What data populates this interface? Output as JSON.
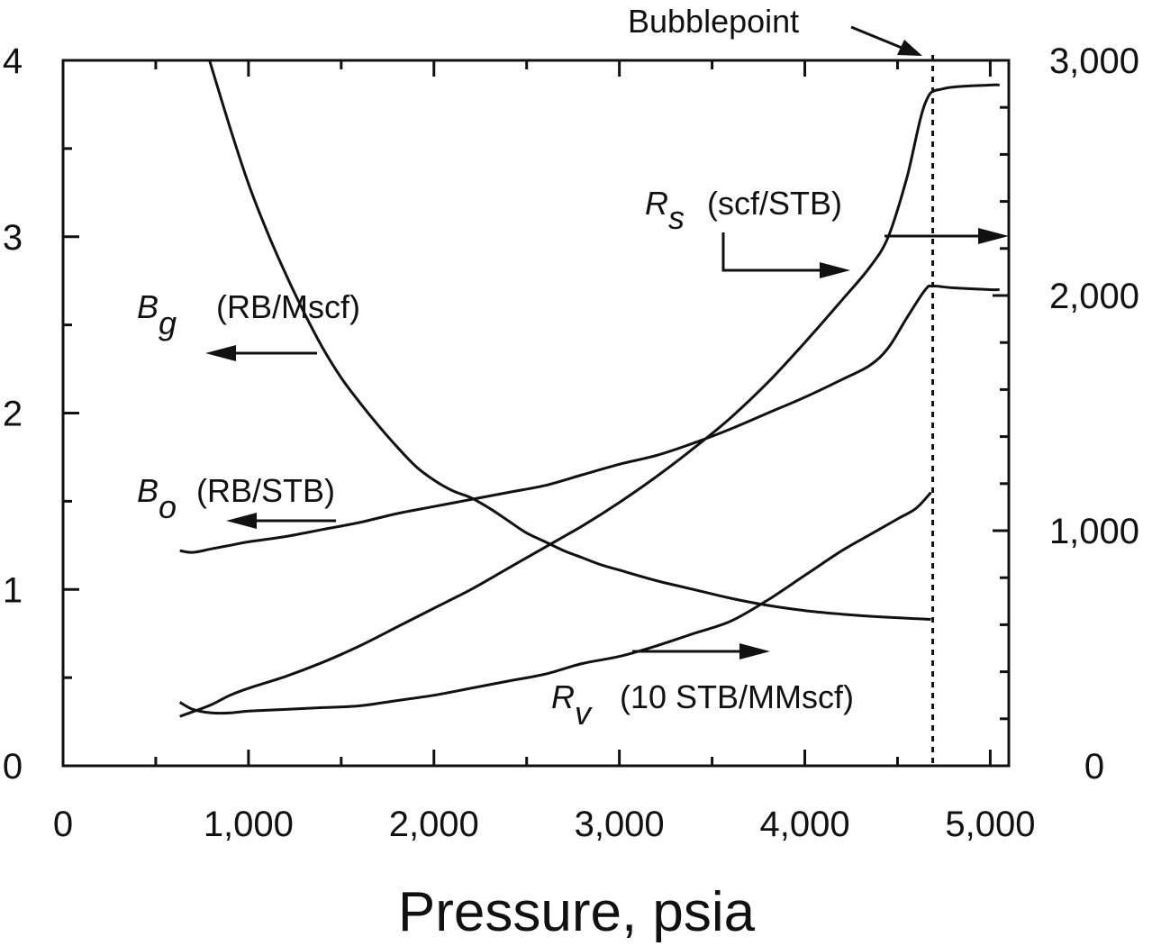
{
  "chart_data": {
    "type": "line",
    "xlabel": "Pressure, psia",
    "xlim": [
      0,
      5100
    ],
    "ylim_left": [
      0,
      4
    ],
    "ylim_right": [
      0,
      3000
    ],
    "x_ticks": [
      {
        "value": 0,
        "label": "0"
      },
      {
        "value": 1000,
        "label": "1,000"
      },
      {
        "value": 2000,
        "label": "2,000"
      },
      {
        "value": 3000,
        "label": "3,000"
      },
      {
        "value": 4000,
        "label": "4,000"
      },
      {
        "value": 5000,
        "label": "5,000"
      }
    ],
    "y_left_ticks": [
      {
        "value": 0,
        "label": "0"
      },
      {
        "value": 1,
        "label": "1"
      },
      {
        "value": 2,
        "label": "2"
      },
      {
        "value": 3,
        "label": "3"
      },
      {
        "value": 4,
        "label": "4"
      }
    ],
    "y_right_ticks": [
      {
        "value": 0,
        "label": "0"
      },
      {
        "value": 1000,
        "label": "1,000"
      },
      {
        "value": 2000,
        "label": "2,000"
      },
      {
        "value": 3000,
        "label": "3,000"
      }
    ],
    "bubblepoint": {
      "x": 4690,
      "label": "Bubblepoint"
    },
    "series": [
      {
        "name": "Bg",
        "axis": "left",
        "points": [
          [
            790,
            4.0
          ],
          [
            900,
            3.62
          ],
          [
            1000,
            3.3
          ],
          [
            1100,
            3.03
          ],
          [
            1200,
            2.79
          ],
          [
            1300,
            2.57
          ],
          [
            1400,
            2.37
          ],
          [
            1500,
            2.2
          ],
          [
            1600,
            2.06
          ],
          [
            1700,
            1.93
          ],
          [
            1800,
            1.81
          ],
          [
            1900,
            1.7
          ],
          [
            2000,
            1.62
          ],
          [
            2100,
            1.56
          ],
          [
            2200,
            1.52
          ],
          [
            2300,
            1.46
          ],
          [
            2400,
            1.39
          ],
          [
            2500,
            1.32
          ],
          [
            2600,
            1.27
          ],
          [
            2700,
            1.22
          ],
          [
            2800,
            1.18
          ],
          [
            2900,
            1.14
          ],
          [
            3000,
            1.11
          ],
          [
            3200,
            1.05
          ],
          [
            3400,
            1.0
          ],
          [
            3600,
            0.95
          ],
          [
            3800,
            0.91
          ],
          [
            4000,
            0.88
          ],
          [
            4200,
            0.86
          ],
          [
            4400,
            0.845
          ],
          [
            4680,
            0.83
          ]
        ]
      },
      {
        "name": "Bo",
        "axis": "left",
        "points": [
          [
            630,
            1.22
          ],
          [
            700,
            1.21
          ],
          [
            800,
            1.23
          ],
          [
            900,
            1.25
          ],
          [
            1000,
            1.27
          ],
          [
            1200,
            1.3
          ],
          [
            1400,
            1.34
          ],
          [
            1600,
            1.38
          ],
          [
            1800,
            1.43
          ],
          [
            2000,
            1.47
          ],
          [
            2200,
            1.51
          ],
          [
            2400,
            1.55
          ],
          [
            2600,
            1.59
          ],
          [
            2800,
            1.65
          ],
          [
            3000,
            1.71
          ],
          [
            3200,
            1.76
          ],
          [
            3400,
            1.83
          ],
          [
            3600,
            1.91
          ],
          [
            3800,
            2.0
          ],
          [
            4000,
            2.09
          ],
          [
            4200,
            2.19
          ],
          [
            4350,
            2.27
          ],
          [
            4450,
            2.37
          ],
          [
            4550,
            2.54
          ],
          [
            4650,
            2.7
          ],
          [
            4690,
            2.72
          ],
          [
            4800,
            2.71
          ],
          [
            5000,
            2.7
          ],
          [
            5050,
            2.7
          ]
        ]
      },
      {
        "name": "Rs",
        "axis": "right",
        "points": [
          [
            630,
            210
          ],
          [
            700,
            230
          ],
          [
            800,
            260
          ],
          [
            900,
            300
          ],
          [
            1000,
            330
          ],
          [
            1200,
            380
          ],
          [
            1400,
            440
          ],
          [
            1600,
            510
          ],
          [
            1800,
            590
          ],
          [
            2000,
            670
          ],
          [
            2200,
            750
          ],
          [
            2400,
            840
          ],
          [
            2600,
            930
          ],
          [
            2800,
            1020
          ],
          [
            3000,
            1120
          ],
          [
            3200,
            1230
          ],
          [
            3400,
            1350
          ],
          [
            3600,
            1480
          ],
          [
            3800,
            1630
          ],
          [
            4000,
            1800
          ],
          [
            4200,
            1980
          ],
          [
            4350,
            2120
          ],
          [
            4450,
            2250
          ],
          [
            4550,
            2500
          ],
          [
            4650,
            2820
          ],
          [
            4750,
            2880
          ],
          [
            5000,
            2895
          ],
          [
            5050,
            2895
          ]
        ]
      },
      {
        "name": "Rv",
        "axis": "left",
        "points": [
          [
            630,
            0.36
          ],
          [
            700,
            0.32
          ],
          [
            800,
            0.3
          ],
          [
            900,
            0.3
          ],
          [
            1000,
            0.31
          ],
          [
            1200,
            0.32
          ],
          [
            1400,
            0.33
          ],
          [
            1600,
            0.34
          ],
          [
            1800,
            0.37
          ],
          [
            2000,
            0.4
          ],
          [
            2200,
            0.44
          ],
          [
            2400,
            0.48
          ],
          [
            2600,
            0.52
          ],
          [
            2800,
            0.58
          ],
          [
            3000,
            0.62
          ],
          [
            3200,
            0.68
          ],
          [
            3400,
            0.75
          ],
          [
            3600,
            0.82
          ],
          [
            3800,
            0.94
          ],
          [
            4000,
            1.08
          ],
          [
            4200,
            1.22
          ],
          [
            4350,
            1.31
          ],
          [
            4500,
            1.4
          ],
          [
            4600,
            1.46
          ],
          [
            4680,
            1.55
          ]
        ]
      }
    ],
    "annotations": {
      "bg": {
        "sym": "B",
        "sub": "g",
        "units": "(RB/Mscf)"
      },
      "bo": {
        "sym": "B",
        "sub": "o",
        "units": "(RB/STB)"
      },
      "rs": {
        "sym": "R",
        "sub": "s",
        "units": "(scf/STB)"
      },
      "rv": {
        "sym": "R",
        "sub": "v",
        "units": "(10 STB/MMscf)"
      }
    }
  }
}
